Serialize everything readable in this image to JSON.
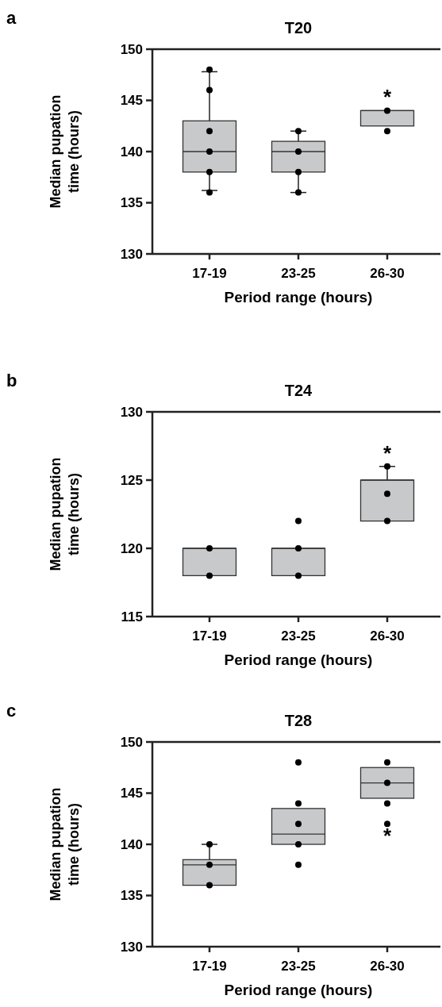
{
  "chart_data": [
    {
      "type": "box",
      "title": "T20",
      "xlabel": "Period range (hours)",
      "ylabel": "Median pupation time (hours)",
      "categories": [
        "17-19",
        "23-25",
        "26-30"
      ],
      "ylim": [
        130,
        150
      ],
      "yticks": [
        130,
        135,
        140,
        145,
        150
      ],
      "boxes": [
        {
          "low": 136.2,
          "q1": 138,
          "median": 140,
          "q3": 143,
          "high": 147.8
        },
        {
          "low": 136,
          "q1": 138,
          "median": 140,
          "q3": 141,
          "high": 142
        },
        {
          "low": 142.5,
          "q1": 142.5,
          "median": 144,
          "q3": 144,
          "high": 144
        }
      ],
      "series": [
        {
          "type": "scatter",
          "color": "#000000",
          "x": [
            "17-19",
            "17-19",
            "17-19",
            "17-19",
            "17-19",
            "17-19",
            "23-25",
            "23-25",
            "23-25",
            "23-25",
            "26-30",
            "26-30"
          ],
          "values": [
            136,
            138,
            140,
            142,
            146,
            148,
            136,
            138,
            140,
            142,
            142,
            144
          ]
        }
      ],
      "marker": "circle",
      "annotations": [
        "a",
        "*"
      ]
    },
    {
      "type": "box",
      "title": "T24",
      "xlabel": "Period range (hours)",
      "ylabel": "Median pupation time (hours)",
      "categories": [
        "17-19",
        "23-25",
        "26-30"
      ],
      "ylim": [
        115,
        130
      ],
      "yticks": [
        115,
        120,
        125,
        130
      ],
      "boxes": [
        {
          "low": 118,
          "q1": 118,
          "median": 120,
          "q3": 120,
          "high": 120
        },
        {
          "low": 118,
          "q1": 118,
          "median": 120,
          "q3": 120,
          "high": 120
        },
        {
          "low": 122,
          "q1": 122,
          "median": 125,
          "q3": 125,
          "high": 126
        }
      ],
      "series": [
        {
          "type": "scatter",
          "color": "#000000",
          "x": [
            "17-19",
            "17-19",
            "23-25",
            "23-25",
            "23-25",
            "26-30",
            "26-30",
            "26-30"
          ],
          "values": [
            118,
            120,
            118,
            120,
            122,
            122,
            124,
            126
          ]
        }
      ],
      "marker": "circle",
      "annotations": [
        "b",
        "*"
      ]
    },
    {
      "type": "box",
      "title": "T28",
      "xlabel": "Period range (hours)",
      "ylabel": "Median pupation time (hours)",
      "categories": [
        "17-19",
        "23-25",
        "26-30"
      ],
      "ylim": [
        130,
        150
      ],
      "yticks": [
        130,
        135,
        140,
        145,
        150
      ],
      "boxes": [
        {
          "low": 136,
          "q1": 136,
          "median": 138,
          "q3": 138.5,
          "high": 140
        },
        {
          "low": 140,
          "q1": 140,
          "median": 141,
          "q3": 143.5,
          "high": 143.5
        },
        {
          "low": 144.5,
          "q1": 144.5,
          "median": 146,
          "q3": 147.5,
          "high": 147.5
        }
      ],
      "series": [
        {
          "type": "scatter",
          "color": "#000000",
          "x": [
            "17-19",
            "17-19",
            "17-19",
            "23-25",
            "23-25",
            "23-25",
            "23-25",
            "23-25",
            "26-30",
            "26-30",
            "26-30",
            "26-30"
          ],
          "values": [
            136,
            138,
            140,
            138,
            140,
            142,
            144,
            148,
            142,
            144,
            146,
            148
          ]
        }
      ],
      "marker": "circle",
      "annotations": [
        "c",
        "*"
      ]
    }
  ]
}
